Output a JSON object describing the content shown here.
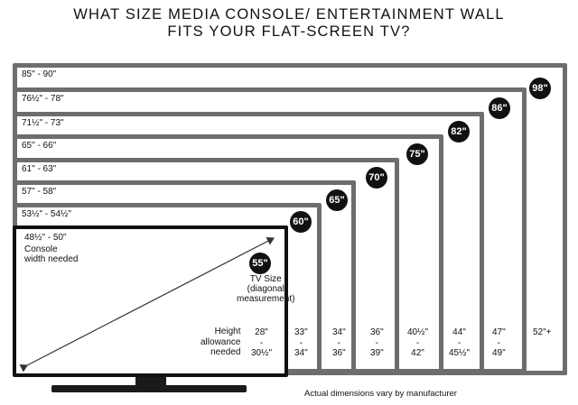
{
  "title_line1": "WHAT SIZE MEDIA CONSOLE/ ENTERTAINMENT WALL",
  "title_line2": "FITS YOUR FLAT-SCREEN TV?",
  "tvs": [
    {
      "size": "98\"",
      "width": "85\" - 90\"",
      "height_top": "52\"+",
      "height_mid": "",
      "height_bot": ""
    },
    {
      "size": "86\"",
      "width": "76½\" - 78\"",
      "height_top": "47\"",
      "height_mid": "-",
      "height_bot": "49\""
    },
    {
      "size": "82\"",
      "width": "71½\" - 73\"",
      "height_top": "44\"",
      "height_mid": "-",
      "height_bot": "45½\""
    },
    {
      "size": "75\"",
      "width": "65\" - 66\"",
      "height_top": "40½\"",
      "height_mid": "-",
      "height_bot": "42\""
    },
    {
      "size": "70\"",
      "width": "61\" - 63\"",
      "height_top": "36\"",
      "height_mid": "-",
      "height_bot": "39\""
    },
    {
      "size": "65\"",
      "width": "57\" - 58\"",
      "height_top": "34\"",
      "height_mid": "-",
      "height_bot": "36\""
    },
    {
      "size": "60\"",
      "width": "53½\" - 54½\"",
      "height_top": "33\"",
      "height_mid": "-",
      "height_bot": "34\""
    },
    {
      "size": "55\"",
      "width": "48½\" - 50\"",
      "height_top": "28\"",
      "height_mid": "-",
      "height_bot": "30½\""
    }
  ],
  "console_label_line1": "Console",
  "console_label_line2": "width needed",
  "tv_size_line1": "TV Size",
  "tv_size_line2": "(diagonal",
  "tv_size_line3": "measurement)",
  "height_label_line1": "Height",
  "height_label_line2": "allowance",
  "height_label_line3": "needed",
  "footnote": "Actual dimensions vary by manufacturer"
}
